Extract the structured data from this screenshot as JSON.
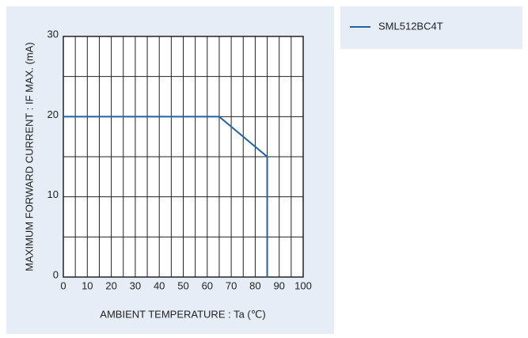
{
  "chart_data": {
    "type": "line",
    "xlabel": "AMBIENT  TEMPERATURE : Ta (℃)",
    "ylabel": "MAXIMUM  FORWARD  CURRENT : IF MAX.  (mA)",
    "x": [
      0,
      65,
      85,
      85
    ],
    "series": [
      {
        "name": "SML512BC4T",
        "color": "#1f64a8",
        "values": [
          20,
          20,
          15,
          0
        ]
      }
    ],
    "xlim": [
      0,
      100
    ],
    "xticks": [
      0,
      10,
      20,
      30,
      40,
      50,
      60,
      70,
      80,
      90,
      100
    ],
    "ylim": [
      0,
      30
    ],
    "yticks": [
      0,
      10,
      20,
      30
    ],
    "grid": true,
    "legend": "outside-right"
  }
}
